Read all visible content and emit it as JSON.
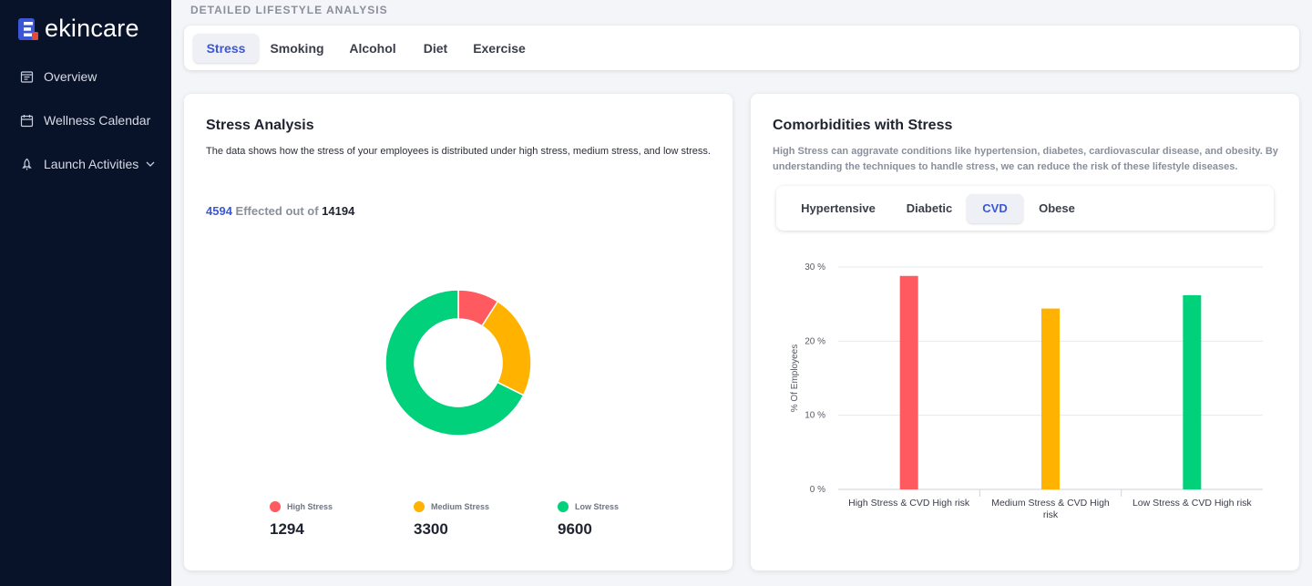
{
  "brand": {
    "name": "ekincare",
    "mark_colors": [
      "#3b57d8",
      "#e24a3b"
    ]
  },
  "sidebar": {
    "items": [
      {
        "label": "Overview",
        "icon": "dashboard-icon"
      },
      {
        "label": "Wellness Calendar",
        "icon": "calendar-icon"
      },
      {
        "label": "Launch Activities",
        "icon": "rocket-icon",
        "has_submenu": true
      }
    ]
  },
  "page": {
    "title": "DETAILED LIFESTYLE ANALYSIS"
  },
  "tabs": {
    "items": [
      "Stress",
      "Smoking",
      "Alcohol",
      "Diet",
      "Exercise"
    ],
    "active": "Stress"
  },
  "stress_card": {
    "title": "Stress Analysis",
    "description": "The data shows how the stress of your employees is distributed under high stress, medium stress, and low stress.",
    "affected": "4594",
    "affected_text": "Effected out of",
    "total": "14194",
    "legend": [
      {
        "label": "High Stress",
        "value": "1294",
        "color": "#ff5a5f"
      },
      {
        "label": "Medium Stress",
        "value": "3300",
        "color": "#ffb300"
      },
      {
        "label": "Low Stress",
        "value": "9600",
        "color": "#00d17a"
      }
    ]
  },
  "comorbidity_card": {
    "title": "Comorbidities with Stress",
    "description": "High Stress can aggravate conditions like hypertension, diabetes, cardiovascular disease, and obesity. By understanding the techniques to handle stress, we can reduce the risk of these lifestyle diseases.",
    "tabs": [
      "Hypertensive",
      "Diabetic",
      "CVD",
      "Obese"
    ],
    "active_tab": "CVD"
  },
  "chart_data": [
    {
      "type": "pie",
      "variant": "donut",
      "categories": [
        "High Stress",
        "Medium Stress",
        "Low Stress"
      ],
      "values": [
        1294,
        3300,
        9600
      ],
      "colors": [
        "#ff5a5f",
        "#ffb300",
        "#00d17a"
      ]
    },
    {
      "type": "bar",
      "categories": [
        "High Stress & CVD High risk",
        "Medium Stress & CVD High risk",
        "Low Stress & CVD High risk"
      ],
      "values": [
        28.8,
        24.4,
        26.2
      ],
      "colors": [
        "#ff5a5f",
        "#ffb300",
        "#00d17a"
      ],
      "ylabel": "% Of Employees",
      "yticks": [
        "0 %",
        "10 %",
        "20 %",
        "30 %"
      ],
      "ylim": [
        0,
        30
      ],
      "grid": true
    }
  ]
}
